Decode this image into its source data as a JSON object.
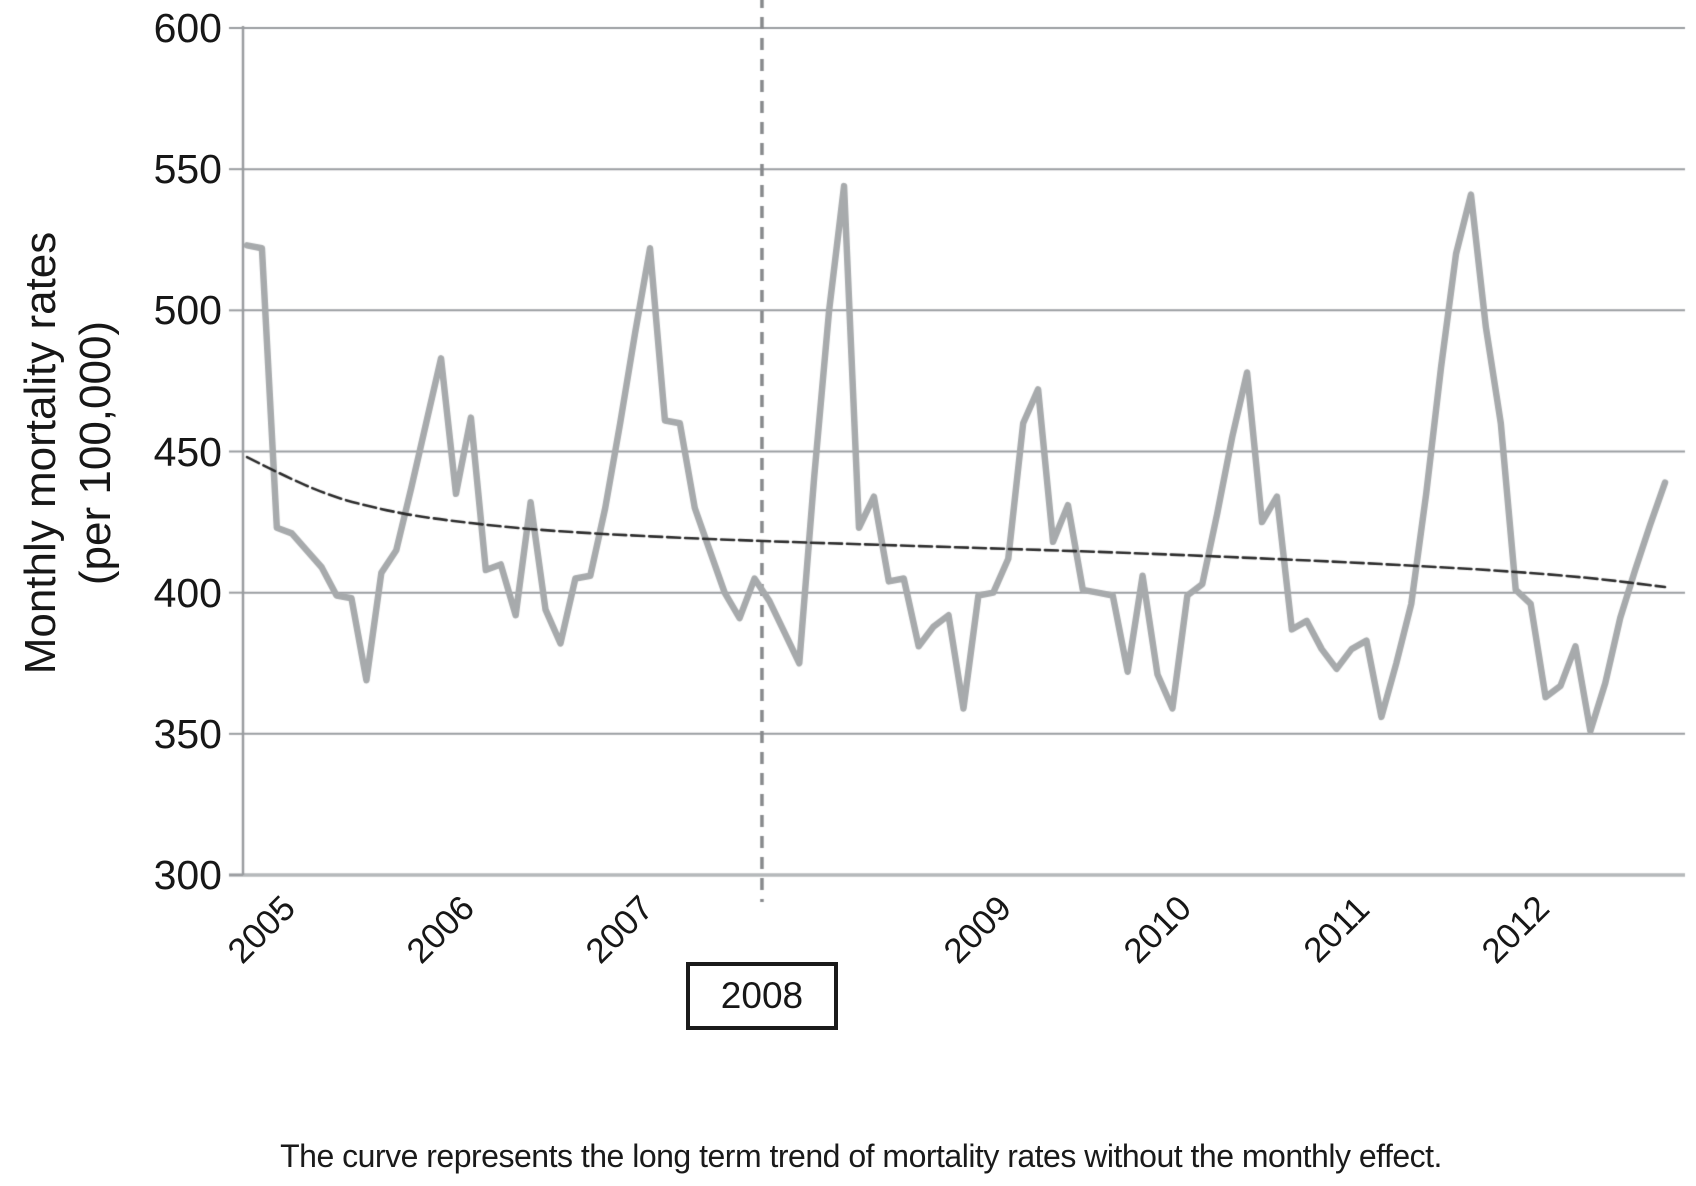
{
  "caption": "The curve represents the long term trend of mortality rates without the monthly effect.",
  "chart_data": {
    "type": "line",
    "title": "",
    "xlabel": "",
    "ylabel": "Monthly mortality rates (per 100,000)",
    "ylabel_line1": "Monthly mortality rates",
    "ylabel_line2": "(per 100,000)",
    "ylim": [
      300,
      600
    ],
    "y_ticks": [
      600,
      550,
      500,
      450,
      400,
      350,
      300
    ],
    "grid": "horizontal",
    "legend_position": "none",
    "x_axis": {
      "years": [
        "2005",
        "2006",
        "2007",
        "2008",
        "2009",
        "2010",
        "2011",
        "2012"
      ],
      "boxed_year": "2008",
      "months_per_year": 12
    },
    "annotations": {
      "vertical_dashed_line_year": "2008",
      "boxed_label": "2008"
    },
    "series": [
      {
        "name": "monthly mortality rate",
        "style": "thick-gray-jagged",
        "color": "#a7aaac",
        "start": "2005-01",
        "values_by_year": {
          "2005": [
            523,
            522,
            423,
            421,
            415,
            409,
            399,
            398,
            369,
            407,
            415,
            437
          ],
          "2006": [
            460,
            483,
            435,
            462,
            408,
            410,
            392,
            432,
            394,
            382,
            405,
            406
          ],
          "2007": [
            430,
            460,
            492,
            522,
            461,
            460,
            430,
            415,
            400,
            391,
            405,
            397
          ],
          "2008": [
            386,
            375,
            441,
            500,
            544,
            423,
            434,
            404,
            405,
            381,
            388,
            392
          ],
          "2009": [
            359,
            399,
            400,
            412,
            460,
            472,
            418,
            431,
            401,
            400,
            399,
            372
          ],
          "2010": [
            406,
            371,
            359,
            399,
            403,
            428,
            455,
            478,
            425,
            434,
            387,
            390
          ],
          "2011": [
            380,
            373,
            380,
            383,
            356,
            375,
            396,
            435,
            480,
            520,
            541,
            494
          ],
          "2012": [
            460,
            401,
            396,
            363,
            367,
            381,
            351,
            368,
            391,
            408,
            424,
            439
          ]
        }
      },
      {
        "name": "long term trend of mortality rates without the monthly effect",
        "style": "thin-dark-dashed-smooth",
        "color": "#2c2c2c",
        "points_month_value": [
          [
            0,
            448
          ],
          [
            3,
            440
          ],
          [
            6,
            433.5
          ],
          [
            9,
            429.5
          ],
          [
            12,
            426.5
          ],
          [
            18,
            422.8
          ],
          [
            24,
            420.7
          ],
          [
            30,
            419.2
          ],
          [
            36,
            418.0
          ],
          [
            42,
            417.0
          ],
          [
            48,
            416.0
          ],
          [
            54,
            415.0
          ],
          [
            60,
            413.9
          ],
          [
            66,
            412.6
          ],
          [
            72,
            411.2
          ],
          [
            78,
            409.6
          ],
          [
            84,
            407.8
          ],
          [
            90,
            405.3
          ],
          [
            95,
            402.0
          ]
        ]
      }
    ],
    "colors": {
      "monthly_line": "#a7aaac",
      "trend_line": "#2c2c2c",
      "gridline": "#9a9da0",
      "bottom_axis": "#b5b8ba",
      "dashed_marker": "#87898c",
      "text": "#171717"
    }
  }
}
